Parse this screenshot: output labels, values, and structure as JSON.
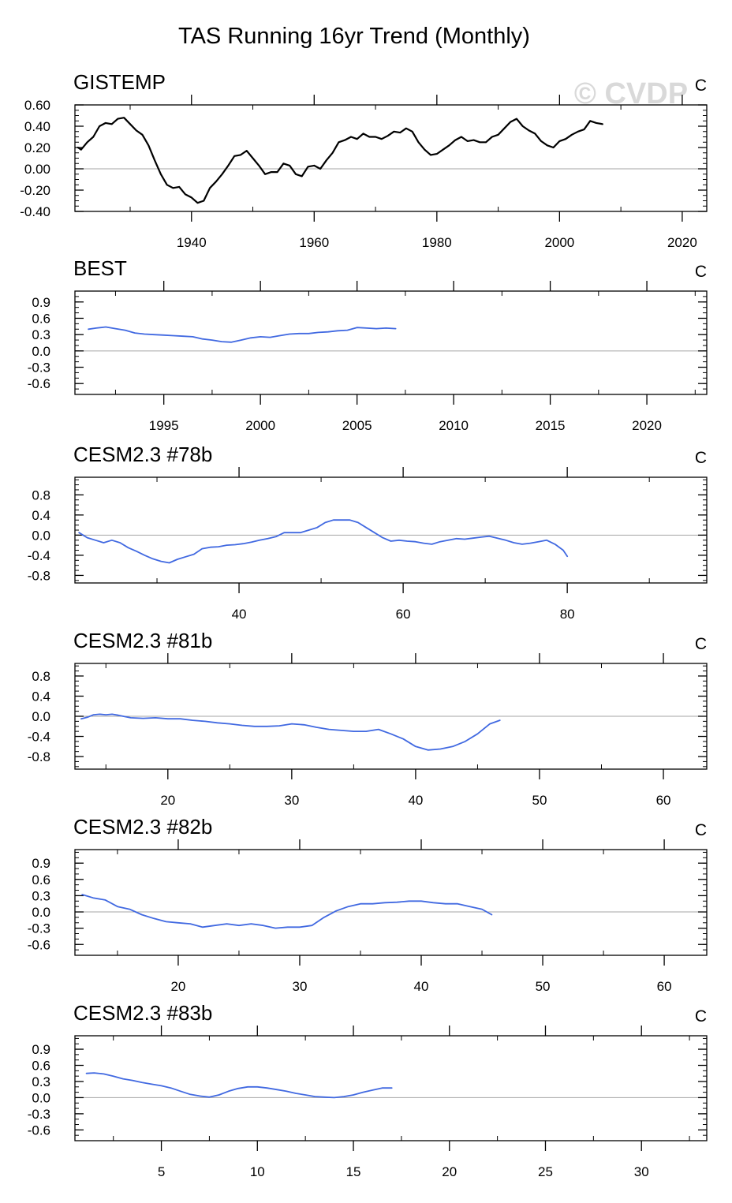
{
  "figure": {
    "title": "TAS Running 16yr Trend (Monthly)",
    "watermark": "© CVDP"
  },
  "colors": {
    "observation_line": "#000000",
    "model_line": "#4169e1",
    "zero_line": "#a6a6a6",
    "axes": "#000000"
  },
  "chart_data": [
    {
      "type": "line",
      "title": "GISTEMP",
      "units": "C",
      "xlabel": "",
      "ylabel": "",
      "xlim": [
        1921,
        2024
      ],
      "ylim": [
        -0.4,
        0.6
      ],
      "xticks": [
        1940,
        1960,
        1980,
        2000,
        2020
      ],
      "xtick_labels": [
        "1940",
        "1960",
        "1980",
        "2000",
        "2020"
      ],
      "xminor_step": 20,
      "yticks": [
        -0.4,
        -0.2,
        0.0,
        0.2,
        0.4,
        0.6
      ],
      "ytick_labels": [
        "-0.40",
        "-0.20",
        "0.00",
        "0.20",
        "0.40",
        "0.60"
      ],
      "yminor_step": 0.05,
      "reference_line": 0,
      "series": [
        {
          "color_key": "observation_line",
          "x": [
            1921.5,
            1922,
            1923,
            1924,
            1925,
            1926,
            1927,
            1928,
            1929,
            1930,
            1931,
            1932,
            1933,
            1934,
            1935,
            1936,
            1937,
            1938,
            1939,
            1940,
            1941,
            1942,
            1943,
            1944,
            1945,
            1946,
            1947,
            1948,
            1949,
            1950,
            1951,
            1952,
            1953,
            1954,
            1955,
            1956,
            1957,
            1958,
            1959,
            1960,
            1961,
            1962,
            1963,
            1964,
            1965,
            1966,
            1967,
            1968,
            1969,
            1970,
            1971,
            1972,
            1973,
            1974,
            1975,
            1976,
            1977,
            1978,
            1979,
            1980,
            1981,
            1982,
            1983,
            1984,
            1985,
            1986,
            1987,
            1988,
            1989,
            1990,
            1991,
            1992,
            1993,
            1994,
            1995,
            1996,
            1997,
            1998,
            1999,
            2000,
            2001,
            2002,
            2003,
            2004,
            2005,
            2006,
            2007
          ],
          "y": [
            0.2,
            0.18,
            0.25,
            0.3,
            0.4,
            0.43,
            0.42,
            0.47,
            0.48,
            0.42,
            0.36,
            0.32,
            0.22,
            0.08,
            -0.05,
            -0.15,
            -0.18,
            -0.17,
            -0.24,
            -0.27,
            -0.32,
            -0.3,
            -0.18,
            -0.12,
            -0.05,
            0.03,
            0.12,
            0.13,
            0.17,
            0.1,
            0.03,
            -0.05,
            -0.03,
            -0.03,
            0.05,
            0.03,
            -0.05,
            -0.07,
            0.02,
            0.03,
            0.0,
            0.08,
            0.15,
            0.25,
            0.27,
            0.3,
            0.28,
            0.33,
            0.3,
            0.3,
            0.28,
            0.31,
            0.35,
            0.34,
            0.38,
            0.35,
            0.25,
            0.18,
            0.13,
            0.14,
            0.18,
            0.22,
            0.27,
            0.3,
            0.26,
            0.27,
            0.25,
            0.25,
            0.3,
            0.32,
            0.38,
            0.44,
            0.47,
            0.4,
            0.36,
            0.33,
            0.26,
            0.22,
            0.2,
            0.26,
            0.28,
            0.32,
            0.35,
            0.37,
            0.45,
            0.43,
            0.42
          ]
        }
      ]
    },
    {
      "type": "line",
      "title": "BEST",
      "units": "C",
      "xlabel": "",
      "ylabel": "",
      "xlim": [
        1990.4,
        2023.1
      ],
      "ylim": [
        -0.8,
        1.1
      ],
      "xticks": [
        1995,
        2000,
        2005,
        2010,
        2015,
        2020
      ],
      "xtick_labels": [
        "1995",
        "2000",
        "2005",
        "2010",
        "2015",
        "2020"
      ],
      "xminor_step": 5,
      "yticks": [
        -0.6,
        -0.3,
        0.0,
        0.3,
        0.6,
        0.9
      ],
      "ytick_labels": [
        "-0.6",
        "-0.3",
        "0.0",
        "0.3",
        "0.6",
        "0.9"
      ],
      "yminor_step": 0.1,
      "reference_line": 0,
      "series": [
        {
          "color_key": "model_line",
          "x": [
            1991.1,
            1991.5,
            1992,
            1992.5,
            1993,
            1993.5,
            1994,
            1994.5,
            1995,
            1995.5,
            1996,
            1996.5,
            1997,
            1997.5,
            1998,
            1998.5,
            1999,
            1999.5,
            2000,
            2000.5,
            2001,
            2001.5,
            2002,
            2002.5,
            2003,
            2003.5,
            2004,
            2004.5,
            2005,
            2005.5,
            2006,
            2006.5,
            2007
          ],
          "y": [
            0.4,
            0.42,
            0.44,
            0.41,
            0.38,
            0.33,
            0.31,
            0.3,
            0.29,
            0.28,
            0.27,
            0.26,
            0.22,
            0.2,
            0.17,
            0.16,
            0.2,
            0.24,
            0.26,
            0.25,
            0.28,
            0.31,
            0.32,
            0.32,
            0.34,
            0.35,
            0.37,
            0.38,
            0.43,
            0.42,
            0.41,
            0.42,
            0.41
          ]
        }
      ]
    },
    {
      "type": "line",
      "title": "CESM2.3 #78b",
      "units": "C",
      "xlabel": "",
      "ylabel": "",
      "xlim": [
        20,
        97
      ],
      "ylim": [
        -0.95,
        1.15
      ],
      "xticks": [
        40,
        60,
        80
      ],
      "xtick_labels": [
        "40",
        "60",
        "80"
      ],
      "xminor_step": 20,
      "yticks": [
        -0.8,
        -0.4,
        0.0,
        0.4,
        0.8
      ],
      "ytick_labels": [
        "-0.8",
        "-0.4",
        "0.0",
        "0.4",
        "0.8"
      ],
      "yminor_step": 0.1,
      "reference_line": 0,
      "series": [
        {
          "color_key": "model_line",
          "x": [
            20.5,
            21.5,
            22.5,
            23.5,
            24.5,
            25.5,
            26.5,
            27.5,
            28.5,
            29.5,
            30.5,
            31.5,
            32.5,
            33.5,
            34.5,
            35.5,
            36.5,
            37.5,
            38.5,
            39.5,
            40.5,
            41.5,
            42.5,
            43.5,
            44.5,
            45.5,
            46.5,
            47.5,
            48.5,
            49.5,
            50.5,
            51.5,
            52.5,
            53.5,
            54.5,
            55.5,
            56.5,
            57.5,
            58.5,
            59.5,
            60.5,
            61.5,
            62.5,
            63.5,
            64.5,
            65.5,
            66.5,
            67.5,
            68.5,
            69.5,
            70.5,
            71.5,
            72.5,
            73.5,
            74.5,
            75.5,
            76.5,
            77.5,
            78.5,
            79.5,
            80.0
          ],
          "y": [
            0.05,
            -0.05,
            -0.1,
            -0.15,
            -0.1,
            -0.15,
            -0.25,
            -0.32,
            -0.4,
            -0.47,
            -0.52,
            -0.55,
            -0.48,
            -0.43,
            -0.38,
            -0.27,
            -0.24,
            -0.23,
            -0.2,
            -0.19,
            -0.17,
            -0.14,
            -0.1,
            -0.07,
            -0.03,
            0.05,
            0.05,
            0.05,
            0.1,
            0.15,
            0.25,
            0.3,
            0.3,
            0.3,
            0.25,
            0.15,
            0.05,
            -0.05,
            -0.12,
            -0.1,
            -0.12,
            -0.13,
            -0.16,
            -0.18,
            -0.13,
            -0.1,
            -0.07,
            -0.08,
            -0.06,
            -0.04,
            -0.02,
            -0.06,
            -0.1,
            -0.15,
            -0.18,
            -0.16,
            -0.13,
            -0.1,
            -0.18,
            -0.3,
            -0.42
          ]
        }
      ]
    },
    {
      "type": "line",
      "title": "CESM2.3 #81b",
      "units": "C",
      "xlabel": "",
      "ylabel": "",
      "xlim": [
        12.5,
        63.5
      ],
      "ylim": [
        -1.05,
        1.05
      ],
      "xticks": [
        20,
        30,
        40,
        50,
        60
      ],
      "xtick_labels": [
        "20",
        "30",
        "40",
        "50",
        "60"
      ],
      "xminor_step": 10,
      "yticks": [
        -0.8,
        -0.4,
        0.0,
        0.4,
        0.8
      ],
      "ytick_labels": [
        "-0.8",
        "-0.4",
        "0.0",
        "0.4",
        "0.8"
      ],
      "yminor_step": 0.1,
      "reference_line": 0,
      "series": [
        {
          "color_key": "model_line",
          "x": [
            13.0,
            13.5,
            14,
            14.5,
            15,
            15.5,
            16,
            17,
            18,
            19,
            20,
            21,
            22,
            23,
            24,
            25,
            26,
            27,
            28,
            29,
            30,
            31,
            32,
            33,
            34,
            35,
            36,
            37,
            38,
            39,
            40,
            41,
            42,
            43,
            44,
            45,
            46,
            46.8
          ],
          "y": [
            -0.05,
            -0.02,
            0.03,
            0.04,
            0.03,
            0.04,
            0.02,
            -0.03,
            -0.04,
            -0.03,
            -0.05,
            -0.05,
            -0.08,
            -0.1,
            -0.13,
            -0.15,
            -0.18,
            -0.2,
            -0.2,
            -0.19,
            -0.15,
            -0.17,
            -0.22,
            -0.26,
            -0.28,
            -0.3,
            -0.3,
            -0.26,
            -0.35,
            -0.45,
            -0.6,
            -0.67,
            -0.65,
            -0.6,
            -0.5,
            -0.35,
            -0.15,
            -0.08
          ]
        }
      ]
    },
    {
      "type": "line",
      "title": "CESM2.3 #82b",
      "units": "C",
      "xlabel": "",
      "ylabel": "",
      "xlim": [
        11.5,
        63.5
      ],
      "ylim": [
        -0.8,
        1.15
      ],
      "xticks": [
        20,
        30,
        40,
        50,
        60
      ],
      "xtick_labels": [
        "20",
        "30",
        "40",
        "50",
        "60"
      ],
      "xminor_step": 10,
      "yticks": [
        -0.6,
        -0.3,
        0.0,
        0.3,
        0.6,
        0.9
      ],
      "ytick_labels": [
        "-0.6",
        "-0.3",
        "0.0",
        "0.3",
        "0.6",
        "0.9"
      ],
      "yminor_step": 0.1,
      "reference_line": 0,
      "series": [
        {
          "color_key": "model_line",
          "x": [
            12.1,
            13,
            14,
            15,
            16,
            17,
            18,
            19,
            20,
            21,
            22,
            23,
            24,
            25,
            26,
            27,
            28,
            29,
            30,
            31,
            32,
            33,
            34,
            35,
            36,
            37,
            38,
            39,
            40,
            41,
            42,
            43,
            44,
            45,
            45.8
          ],
          "y": [
            0.32,
            0.26,
            0.22,
            0.1,
            0.05,
            -0.05,
            -0.12,
            -0.18,
            -0.2,
            -0.22,
            -0.28,
            -0.25,
            -0.22,
            -0.25,
            -0.22,
            -0.25,
            -0.3,
            -0.28,
            -0.28,
            -0.25,
            -0.1,
            0.02,
            0.1,
            0.15,
            0.15,
            0.17,
            0.18,
            0.2,
            0.2,
            0.17,
            0.15,
            0.15,
            0.1,
            0.05,
            -0.05
          ]
        }
      ]
    },
    {
      "type": "line",
      "title": "CESM2.3 #83b",
      "units": "C",
      "xlabel": "",
      "ylabel": "",
      "xlim": [
        0.5,
        33.4
      ],
      "ylim": [
        -0.8,
        1.15
      ],
      "xticks": [
        5,
        10,
        15,
        20,
        25,
        30
      ],
      "xtick_labels": [
        "5",
        "10",
        "15",
        "20",
        "25",
        "30"
      ],
      "xminor_step": 5,
      "yticks": [
        -0.6,
        -0.3,
        0.0,
        0.3,
        0.6,
        0.9
      ],
      "ytick_labels": [
        "-0.6",
        "-0.3",
        "0.0",
        "0.3",
        "0.6",
        "0.9"
      ],
      "yminor_step": 0.1,
      "reference_line": 0,
      "series": [
        {
          "color_key": "model_line",
          "x": [
            1.1,
            1.5,
            2,
            2.5,
            3,
            3.5,
            4,
            4.5,
            5,
            5.5,
            6,
            6.5,
            7,
            7.5,
            8,
            8.5,
            9,
            9.5,
            10,
            10.5,
            11,
            11.5,
            12,
            12.5,
            13,
            13.5,
            14,
            14.5,
            15,
            15.5,
            16,
            16.5,
            17
          ],
          "y": [
            0.45,
            0.46,
            0.44,
            0.4,
            0.35,
            0.32,
            0.28,
            0.25,
            0.22,
            0.18,
            0.12,
            0.06,
            0.03,
            0.01,
            0.05,
            0.12,
            0.17,
            0.2,
            0.2,
            0.18,
            0.15,
            0.12,
            0.08,
            0.05,
            0.02,
            0.01,
            0.0,
            0.02,
            0.05,
            0.1,
            0.14,
            0.18,
            0.18
          ]
        }
      ]
    }
  ]
}
